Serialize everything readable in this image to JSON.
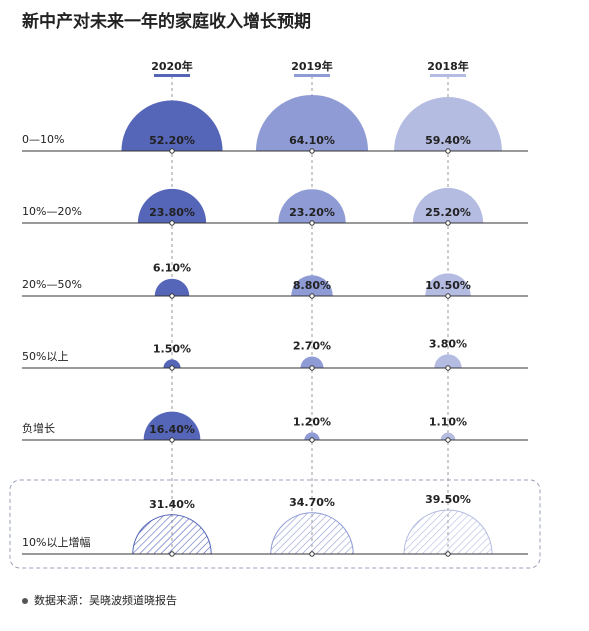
{
  "chart_data": {
    "type": "semicircle",
    "title": "新中产对未来一年的家庭收入增长预期",
    "categories": [
      "0—10%",
      "10%—20%",
      "20%—50%",
      "50%以上",
      "负增长"
    ],
    "series": [
      {
        "name": "2020年",
        "color": "#5565b8",
        "values": [
          52.2,
          23.8,
          6.1,
          1.5,
          16.4
        ],
        "value_labels": [
          "52.20%",
          "23.80%",
          "6.10%",
          "1.50%",
          "16.40%"
        ]
      },
      {
        "name": "2019年",
        "color": "#8f9bd4",
        "values": [
          64.1,
          23.2,
          8.8,
          2.7,
          1.2
        ],
        "value_labels": [
          "64.10%",
          "23.20%",
          "8.80%",
          "2.70%",
          "1.20%"
        ]
      },
      {
        "name": "2018年",
        "color": "#b4bce2",
        "values": [
          59.4,
          25.2,
          10.5,
          3.8,
          1.1
        ],
        "value_labels": [
          "59.40%",
          "25.20%",
          "10.50%",
          "3.80%",
          "1.10%"
        ]
      }
    ],
    "summary": {
      "category": "10%以上增幅",
      "values": [
        31.4,
        34.7,
        39.5
      ],
      "value_labels": [
        "31.40%",
        "34.70%",
        "39.50%"
      ]
    },
    "source": "数据来源：吴晓波频道晓报告"
  }
}
